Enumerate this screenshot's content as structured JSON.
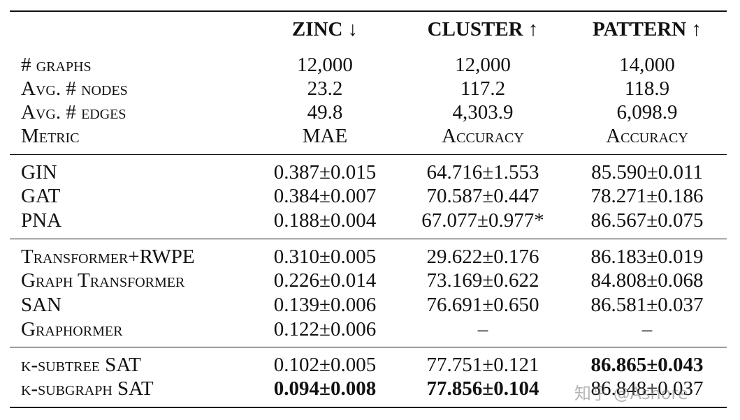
{
  "header": {
    "columns": [
      "ZINC ↓",
      "CLUSTER ↑",
      "PATTERN ↑"
    ]
  },
  "stats": [
    {
      "label": "# graphs",
      "values": [
        "12,000",
        "12,000",
        "14,000"
      ],
      "sc": [
        false,
        false,
        false
      ]
    },
    {
      "label": "Avg. # nodes",
      "values": [
        "23.2",
        "117.2",
        "118.9"
      ],
      "sc": [
        false,
        false,
        false
      ]
    },
    {
      "label": "Avg. # edges",
      "values": [
        "49.8",
        "4,303.9",
        "6,098.9"
      ],
      "sc": [
        false,
        false,
        false
      ]
    },
    {
      "label": "Metric",
      "values": [
        "MAE",
        "Accuracy",
        "Accuracy"
      ],
      "sc": [
        false,
        true,
        true
      ]
    }
  ],
  "groups": [
    [
      {
        "label": "GIN",
        "values": [
          "0.387±0.015",
          "64.716±1.553",
          "85.590±0.011"
        ],
        "bold": [
          false,
          false,
          false
        ]
      },
      {
        "label": "GAT",
        "values": [
          "0.384±0.007",
          "70.587±0.447",
          "78.271±0.186"
        ],
        "bold": [
          false,
          false,
          false
        ]
      },
      {
        "label": "PNA",
        "values": [
          "0.188±0.004",
          "67.077±0.977*",
          "86.567±0.075"
        ],
        "bold": [
          false,
          false,
          false
        ]
      }
    ],
    [
      {
        "label": "Transformer+RWPE",
        "values": [
          "0.310±0.005",
          "29.622±0.176",
          "86.183±0.019"
        ],
        "bold": [
          false,
          false,
          false
        ]
      },
      {
        "label": "Graph Transformer",
        "values": [
          "0.226±0.014",
          "73.169±0.622",
          "84.808±0.068"
        ],
        "bold": [
          false,
          false,
          false
        ]
      },
      {
        "label": "SAN",
        "values": [
          "0.139±0.006",
          "76.691±0.650",
          "86.581±0.037"
        ],
        "bold": [
          false,
          false,
          false
        ]
      },
      {
        "label": "Graphormer",
        "values": [
          "0.122±0.006",
          "–",
          "–"
        ],
        "bold": [
          false,
          false,
          false
        ]
      }
    ],
    [
      {
        "label": "k-subtree SAT",
        "values": [
          "0.102±0.005",
          "77.751±0.121",
          "86.865±0.043"
        ],
        "bold": [
          false,
          false,
          true
        ]
      },
      {
        "label": "k-subgraph SAT",
        "values": [
          "0.094±0.008",
          "77.856±0.104",
          "86.848±0.037"
        ],
        "bold": [
          true,
          true,
          false
        ]
      }
    ]
  ],
  "watermark": "知乎 @Ashore"
}
